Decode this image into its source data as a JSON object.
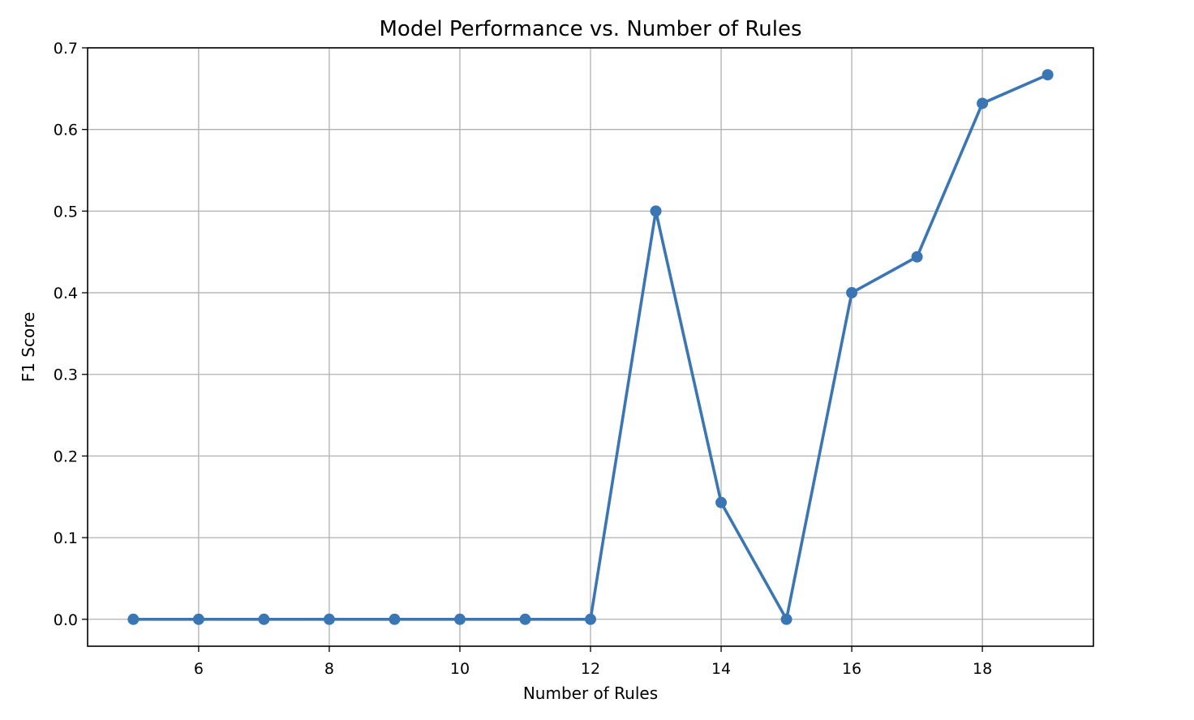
{
  "chart_data": {
    "type": "line",
    "title": "Model Performance vs. Number of Rules",
    "xlabel": "Number of Rules",
    "ylabel": "F1 Score",
    "x": [
      5,
      6,
      7,
      8,
      9,
      10,
      11,
      12,
      13,
      14,
      15,
      16,
      17,
      18,
      19
    ],
    "series": [
      {
        "values": [
          0.0,
          0.0,
          0.0,
          0.0,
          0.0,
          0.0,
          0.0,
          0.0,
          0.5,
          0.143,
          0.0,
          0.4,
          0.444,
          0.632,
          0.667
        ],
        "color": "#3a76b4",
        "marker": "circle"
      }
    ],
    "xlim": [
      4.3,
      19.7
    ],
    "ylim": [
      -0.033,
      0.7
    ],
    "xticks": [
      6,
      8,
      10,
      12,
      14,
      16,
      18
    ],
    "xtick_labels": [
      "6",
      "8",
      "10",
      "12",
      "14",
      "16",
      "18"
    ],
    "yticks": [
      0.0,
      0.1,
      0.2,
      0.3,
      0.4,
      0.5,
      0.6,
      0.7
    ],
    "ytick_labels": [
      "0.0",
      "0.1",
      "0.2",
      "0.3",
      "0.4",
      "0.5",
      "0.6",
      "0.7"
    ],
    "grid": true,
    "grid_color": "#b0b0b0",
    "legend": false
  }
}
